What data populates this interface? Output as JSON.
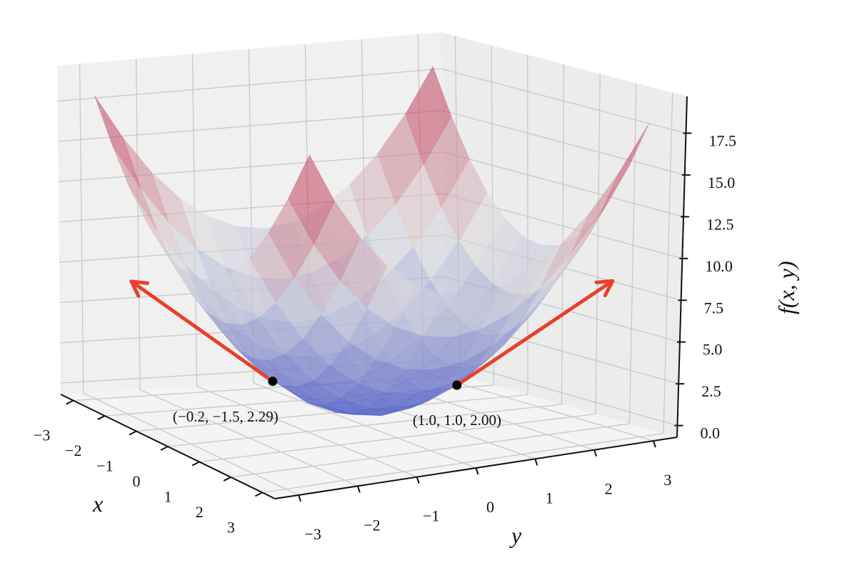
{
  "chart_data": {
    "type": "surface",
    "xlabel": "x",
    "ylabel": "y",
    "zlabel": "f(x, y)",
    "x_ticks": [
      "−3",
      "−2",
      "−1",
      "0",
      "1",
      "2",
      "3"
    ],
    "y_ticks": [
      "−3",
      "−2",
      "−1",
      "0",
      "1",
      "2",
      "3"
    ],
    "z_ticks": [
      "0.0",
      "2.5",
      "5.0",
      "7.5",
      "10.0",
      "12.5",
      "15.0",
      "17.5"
    ],
    "xlim": [
      -3,
      3
    ],
    "ylim": [
      -3,
      3
    ],
    "zlim": [
      0,
      18
    ],
    "grid": true,
    "colormap": "coolwarm",
    "surface_alpha": 0.55,
    "surface": {
      "x": [
        -3,
        -2.5,
        -2,
        -1.5,
        -1,
        -0.5,
        0,
        0.5,
        1,
        1.5,
        2,
        2.5,
        3
      ],
      "y": [
        -3,
        -2.5,
        -2,
        -1.5,
        -1,
        -0.5,
        0,
        0.5,
        1,
        1.5,
        2,
        2.5,
        3
      ],
      "z": [
        [
          18,
          15.25,
          13,
          11.25,
          10,
          9.25,
          9,
          9.25,
          10,
          11.25,
          13,
          15.25,
          18
        ],
        [
          15.25,
          12.5,
          10.25,
          8.5,
          7.25,
          6.5,
          6.25,
          6.5,
          7.25,
          8.5,
          10.25,
          12.5,
          15.25
        ],
        [
          13,
          10.25,
          8,
          6.25,
          5,
          4.25,
          4,
          4.25,
          5,
          6.25,
          8,
          10.25,
          13
        ],
        [
          11.25,
          8.5,
          6.25,
          4.5,
          3.25,
          2.5,
          2.25,
          2.5,
          3.25,
          4.5,
          6.25,
          8.5,
          11.25
        ],
        [
          10,
          7.25,
          5,
          3.25,
          2,
          1.25,
          1,
          1.25,
          2,
          3.25,
          5,
          7.25,
          10
        ],
        [
          9.25,
          6.5,
          4.25,
          2.5,
          1.25,
          0.5,
          0.25,
          0.5,
          1.25,
          2.5,
          4.25,
          6.5,
          9.25
        ],
        [
          9,
          6.25,
          4,
          2.25,
          1,
          0.25,
          0,
          0.25,
          1,
          2.25,
          4,
          6.25,
          9
        ],
        [
          9.25,
          6.5,
          4.25,
          2.5,
          1.25,
          0.5,
          0.25,
          0.5,
          1.25,
          2.5,
          4.25,
          6.5,
          9.25
        ],
        [
          10,
          7.25,
          5,
          3.25,
          2,
          1.25,
          1,
          1.25,
          2,
          3.25,
          5,
          7.25,
          10
        ],
        [
          11.25,
          8.5,
          6.25,
          4.5,
          3.25,
          2.5,
          2.25,
          2.5,
          3.25,
          4.5,
          6.25,
          8.5,
          11.25
        ],
        [
          13,
          10.25,
          8,
          6.25,
          5,
          4.25,
          4,
          4.25,
          5,
          6.25,
          8,
          10.25,
          13
        ],
        [
          15.25,
          12.5,
          10.25,
          8.5,
          7.25,
          6.5,
          6.25,
          6.5,
          7.25,
          8.5,
          10.25,
          12.5,
          15.25
        ],
        [
          18,
          15.25,
          13,
          11.25,
          10,
          9.25,
          9,
          9.25,
          10,
          11.25,
          13,
          15.25,
          18
        ]
      ]
    },
    "points": [
      {
        "x": -0.2,
        "y": -1.5,
        "z": 2.29,
        "label": "(−0.2, −1.5, 2.29)"
      },
      {
        "x": 1.0,
        "y": 1.0,
        "z": 2.0,
        "label": "(1.0, 1.0, 2.00)"
      }
    ],
    "colors": {
      "arrow": "#e8402a",
      "point": "#000000",
      "cool": "#3b4cc0",
      "neutral": "#dddddd",
      "warm": "#b40426",
      "pane": "#f2f2f2",
      "grid": "#c8c8c8"
    }
  }
}
